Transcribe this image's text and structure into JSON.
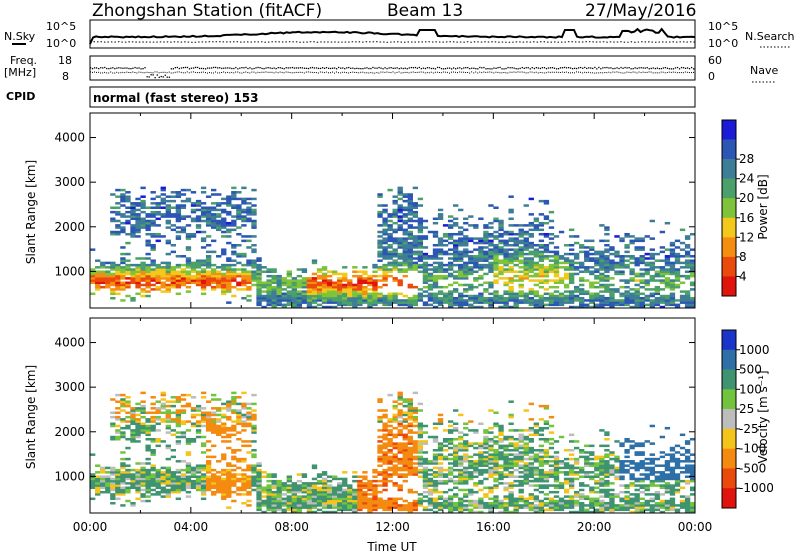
{
  "header": {
    "station": "Zhongshan Station (fitACF)",
    "beam": "Beam 13",
    "date": "27/May/2016"
  },
  "mini_panels": {
    "nsky_label": "N.Sky",
    "nsearch_label": "N.Search",
    "nsky_ticks": [
      "10^5",
      "10^0"
    ],
    "nsearch_ticks": [
      "10^5",
      "10^0"
    ],
    "freq_label_1": "Freq.",
    "freq_label_2": "[MHz]",
    "freq_ticks": [
      "18",
      "8"
    ],
    "nave_label": "Nave",
    "nave_ticks": [
      "60",
      "0"
    ],
    "cpid_label": "CPID",
    "cpid_text": "normal (fast stereo) 153"
  },
  "chart_data": [
    {
      "type": "heatmap",
      "name": "power",
      "ylabel": "Slant Range [km]",
      "xlabel": "",
      "x_range_hours": [
        0,
        24
      ],
      "ylim": [
        180,
        4550
      ],
      "y_ticks": [
        "1000",
        "2000",
        "3000",
        "4000"
      ],
      "colorbar": {
        "label": "Power [dB]",
        "ticks": [
          "4",
          "8",
          "12",
          "16",
          "20",
          "24",
          "28"
        ],
        "colors": [
          "#1b1ad6",
          "#2b56b3",
          "#3d7d95",
          "#4ba06a",
          "#7ec33a",
          "#f2c81a",
          "#f58d10",
          "#ea4a0c",
          "#e0140c"
        ]
      }
    },
    {
      "type": "heatmap",
      "name": "velocity",
      "ylabel": "Slant Range [km]",
      "xlabel": "Time UT",
      "x_range_hours": [
        0,
        24
      ],
      "ylim": [
        180,
        4550
      ],
      "y_ticks": [
        "1000",
        "2000",
        "3000",
        "4000"
      ],
      "x_ticks": [
        "00:00",
        "04:00",
        "08:00",
        "12:00",
        "16:00",
        "20:00",
        "00:00"
      ],
      "colorbar": {
        "label": "Velocity [m s⁻¹]",
        "ticks": [
          "1000",
          "500",
          "100",
          "25",
          "-25",
          "-100",
          "-500",
          "-1000"
        ],
        "colors": [
          "#1a33c8",
          "#2d6fa6",
          "#3f9370",
          "#72c43e",
          "#bdbdbd",
          "#f4c41a",
          "#f48a10",
          "#ea4a0c",
          "#e0140c"
        ]
      }
    }
  ]
}
